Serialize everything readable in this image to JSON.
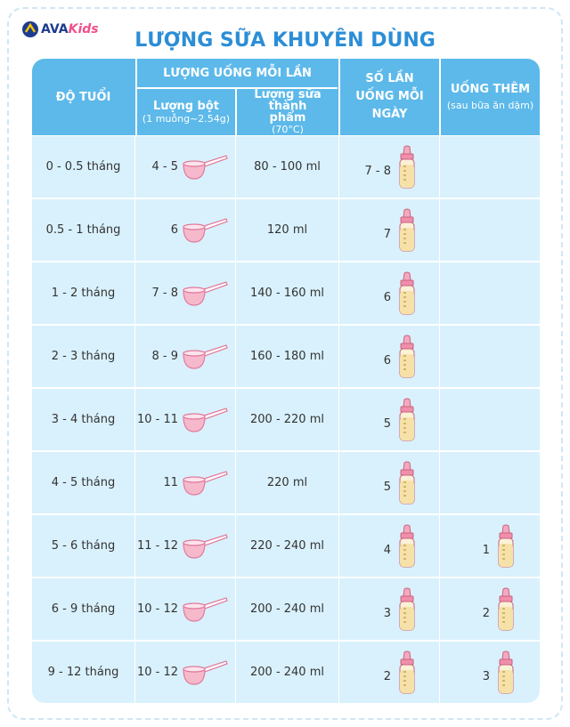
{
  "logo": {
    "brand": "AVA",
    "sub": "Kids"
  },
  "title": "LƯỢNG SỮA KHUYÊN DÙNG",
  "table": {
    "headers": {
      "age": "ĐỘ TUỔI",
      "per_feed": "LƯỢNG UỐNG MỖI LẦN",
      "powder": "Lượng bột",
      "powder_note": "(1 muỗng~2.54g)",
      "milk": "Lượng sữa thành phẩm",
      "milk_note": "(70°C)",
      "feeds": "SỐ LẦN UỐNG MỖI NGÀY",
      "extra": "UỐNG THÊM",
      "extra_note": "(sau bữa ăn dặm)"
    },
    "rows": [
      {
        "age": "0 - 0.5 tháng",
        "powder": "4 - 5",
        "milk": "80 - 100 ml",
        "feeds": "7 - 8"
      },
      {
        "age": "0.5 - 1 tháng",
        "powder": "6",
        "milk": "120 ml",
        "feeds": "7"
      },
      {
        "age": "1 - 2 tháng",
        "powder": "7 - 8",
        "milk": "140 - 160 ml",
        "feeds": "6"
      },
      {
        "age": "2 - 3 tháng",
        "powder": "8 - 9",
        "milk": "160 - 180 ml",
        "feeds": "6"
      },
      {
        "age": "3 - 4 tháng",
        "powder": "10 - 11",
        "milk": "200 - 220 ml",
        "feeds": "5"
      },
      {
        "age": "4 - 5 tháng",
        "powder": "11",
        "milk": "220 ml",
        "feeds": "5"
      },
      {
        "age": "5 - 6 tháng",
        "powder": "11 - 12",
        "milk": "220 - 240 ml",
        "feeds": "4",
        "extra": "1"
      },
      {
        "age": "6 - 9 tháng",
        "powder": "10 - 12",
        "milk": "200 - 240 ml",
        "feeds": "3",
        "extra": "2"
      },
      {
        "age": "9 - 12 tháng",
        "powder": "10 - 12",
        "milk": "200 - 240 ml",
        "feeds": "2",
        "extra": "3"
      }
    ]
  }
}
